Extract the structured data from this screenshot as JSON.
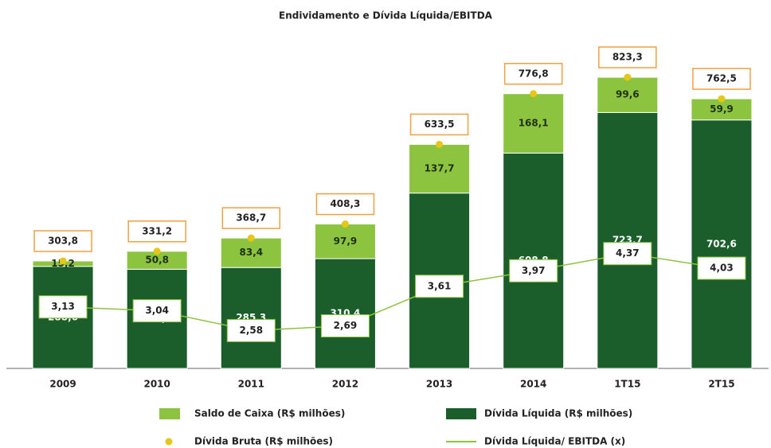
{
  "chart_data": {
    "type": "bar",
    "title": "Endividamento e Dívida Líquida/EBITDA",
    "categories": [
      "2009",
      "2010",
      "2011",
      "2012",
      "2013",
      "2014",
      "1T15",
      "2T15"
    ],
    "ylim": [
      0,
      900
    ],
    "y2lim": [
      1.7,
      9.1
    ],
    "stacked": true,
    "legend": "bottom",
    "series": [
      {
        "name": "Dívida Líquida (R$ milhões)",
        "type": "bar",
        "color": "#1b5e2b",
        "values": [
          288.6,
          280.4,
          285.3,
          310.4,
          495.8,
          608.8,
          723.7,
          702.6
        ],
        "value_labels": [
          "288,6",
          "280,4",
          "285,3",
          "310,4",
          "495,8",
          "608,8",
          "723,7",
          "702,6"
        ]
      },
      {
        "name": "Saldo de Caixa (R$ milhões)",
        "type": "bar",
        "color": "#8cc43f",
        "values": [
          15.2,
          50.8,
          83.4,
          97.9,
          137.7,
          168.1,
          99.6,
          59.9
        ],
        "value_labels": [
          "15,2",
          "50,8",
          "83,4",
          "97,9",
          "137,7",
          "168,1",
          "99,6",
          "59,9"
        ]
      },
      {
        "name": "Dívida Bruta (R$ milhões)",
        "type": "scatter",
        "color": "#e6c619",
        "values": [
          303.8,
          331.2,
          368.7,
          408.3,
          633.5,
          776.8,
          823.3,
          762.5
        ],
        "value_labels": [
          "303,8",
          "331,2",
          "368,7",
          "408,3",
          "633,5",
          "776,8",
          "823,3",
          "762,5"
        ]
      },
      {
        "name": "Dívida Líquida/ EBITDA (x)",
        "type": "line",
        "axis": "y2",
        "color": "#8cc43f",
        "values": [
          3.13,
          3.04,
          2.58,
          2.69,
          3.61,
          3.97,
          4.37,
          4.03
        ],
        "value_labels": [
          "3,13",
          "3,04",
          "2,58",
          "2,69",
          "3,61",
          "3,97",
          "4,37",
          "4,03"
        ]
      }
    ]
  }
}
